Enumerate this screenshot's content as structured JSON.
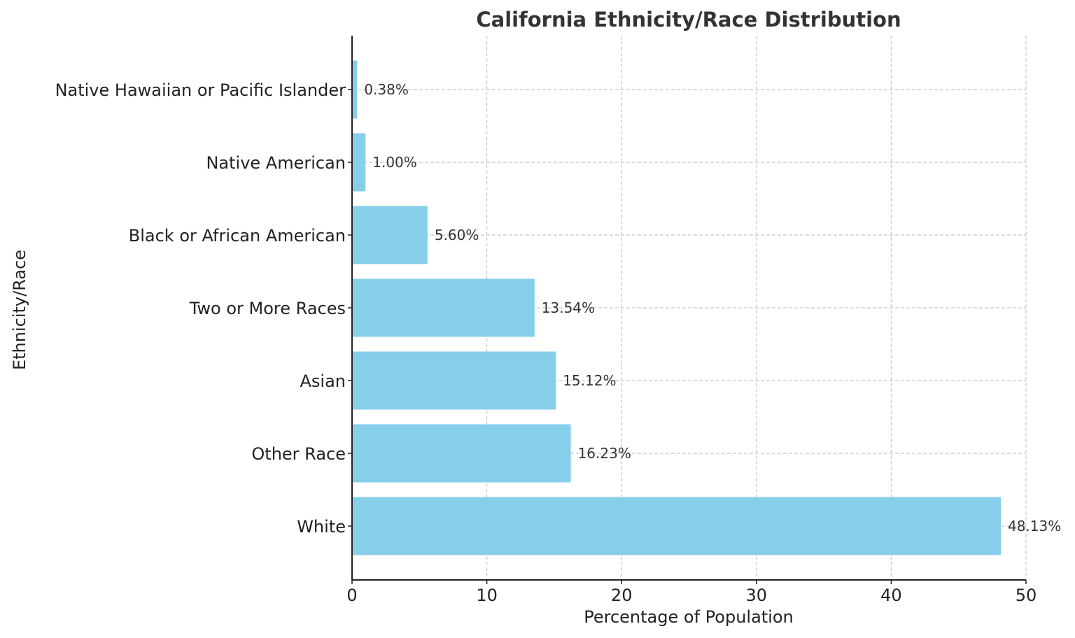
{
  "chart_data": {
    "type": "bar",
    "orientation": "horizontal",
    "title": "California Ethnicity/Race Distribution",
    "xlabel": "Percentage of Population",
    "ylabel": "Ethnicity/Race",
    "categories": [
      "White",
      "Other Race",
      "Asian",
      "Two or More Races",
      "Black or African American",
      "Native American",
      "Native Hawaiian or Pacific Islander"
    ],
    "values": [
      48.13,
      16.23,
      15.12,
      13.54,
      5.6,
      1.0,
      0.38
    ],
    "value_labels": [
      "48.13%",
      "16.23%",
      "15.12%",
      "13.54%",
      "5.60%",
      "1.00%",
      "0.38%"
    ],
    "xlim": [
      0,
      50
    ],
    "xticks": [
      0,
      10,
      20,
      30,
      40,
      50
    ],
    "grid": true,
    "bar_color": "#87CEEB"
  }
}
